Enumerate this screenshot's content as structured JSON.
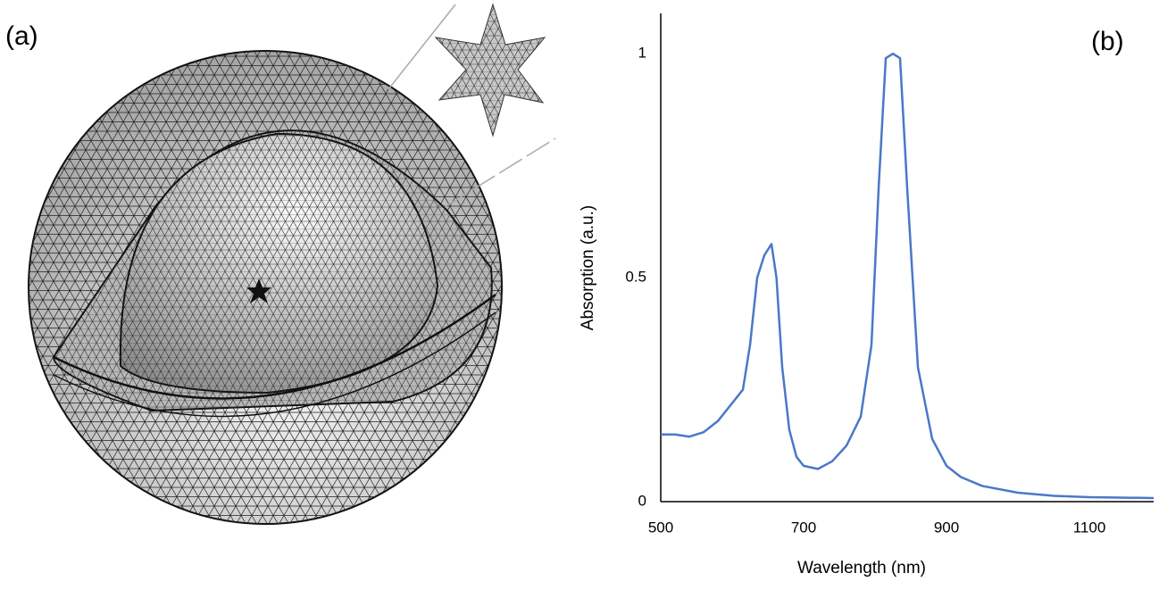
{
  "panel_labels": [
    "(a)",
    "(b)"
  ],
  "chart_data": {
    "type": "line",
    "x_label": "Wavelength (nm)",
    "y_label": "Absorption (a.u.)",
    "xlim": [
      500,
      1190
    ],
    "ylim": [
      0,
      1.09
    ],
    "xticks": [
      500,
      700,
      900,
      1100
    ],
    "yticks": [
      0,
      0.5,
      1
    ],
    "grid": false,
    "x": [
      500,
      520,
      540,
      560,
      580,
      600,
      615,
      625,
      635,
      645,
      655,
      662,
      670,
      680,
      690,
      700,
      720,
      740,
      760,
      780,
      795,
      805,
      815,
      825,
      835,
      845,
      860,
      880,
      900,
      920,
      950,
      1000,
      1050,
      1100,
      1190
    ],
    "series": [
      {
        "color": "#4a78c8",
        "values": [
          0.15,
          0.15,
          0.145,
          0.155,
          0.18,
          0.22,
          0.25,
          0.35,
          0.5,
          0.55,
          0.575,
          0.5,
          0.3,
          0.16,
          0.1,
          0.08,
          0.073,
          0.09,
          0.125,
          0.19,
          0.35,
          0.7,
          0.99,
          1.0,
          0.99,
          0.7,
          0.3,
          0.14,
          0.08,
          0.055,
          0.035,
          0.02,
          0.013,
          0.01,
          0.008
        ]
      }
    ]
  }
}
